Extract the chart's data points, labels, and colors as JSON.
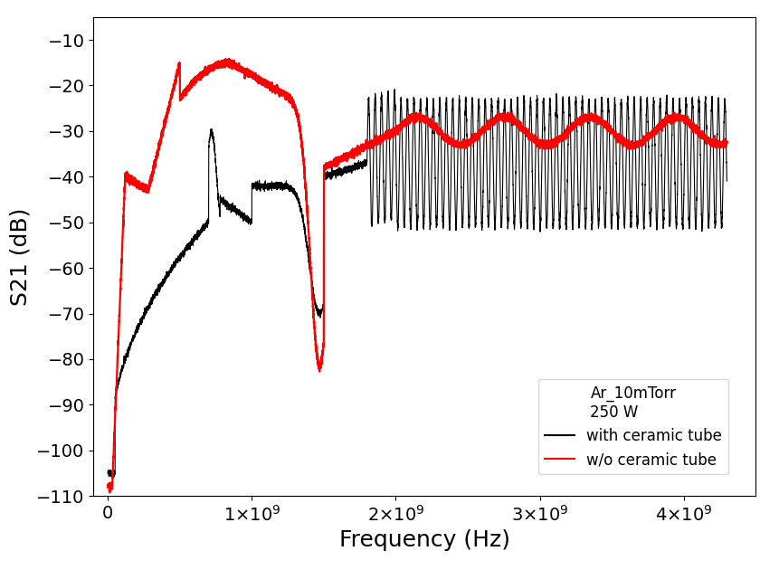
{
  "title": "",
  "xlabel": "Frequency (Hz)",
  "ylabel": "S21 (dB)",
  "xlim": [
    -100000000.0,
    4500000000.0
  ],
  "ylim": [
    -110,
    -5
  ],
  "yticks": [
    -110,
    -100,
    -90,
    -80,
    -70,
    -60,
    -50,
    -40,
    -30,
    -20,
    -10
  ],
  "xticks": [
    0,
    1000000000.0,
    2000000000.0,
    3000000000.0,
    4000000000.0
  ],
  "legend_title": "Ar_10mTorr\n250 W",
  "legend_label1": "with ceramic tube",
  "legend_label2": "w/o ceramic tube",
  "line1_color": "#000000",
  "line2_color": "#ff0000",
  "background_color": "#ffffff",
  "xlabel_fontsize": 18,
  "ylabel_fontsize": 18,
  "tick_fontsize": 14,
  "legend_fontsize": 12
}
